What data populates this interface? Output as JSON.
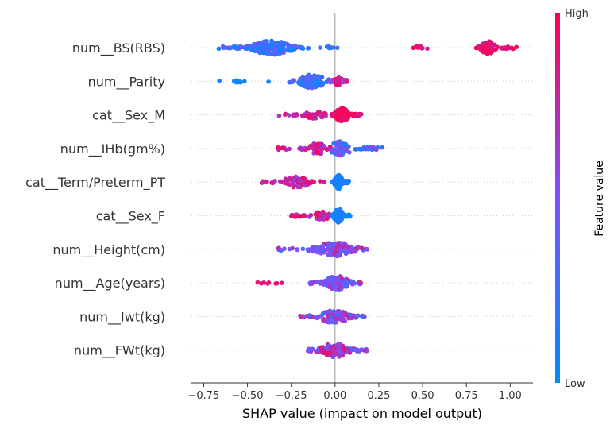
{
  "chart_data": {
    "type": "scatter",
    "subtype": "shap-beeswarm",
    "title": "",
    "xlabel": "SHAP value (impact on model output)",
    "xlim": [
      -0.82,
      1.13
    ],
    "xticks": [
      "−0.75",
      "−0.50",
      "−0.25",
      "0.00",
      "0.25",
      "0.50",
      "0.75",
      "1.00"
    ],
    "xtick_values": [
      -0.75,
      -0.5,
      -0.25,
      0,
      0.25,
      0.5,
      0.75,
      1.0
    ],
    "colorbar": {
      "label": "Feature value",
      "high": "High",
      "low": "Low",
      "low_color": "#008bfb",
      "high_color": "#ff0052"
    },
    "zero_line_color": "#999999",
    "features": [
      {
        "name": "num__BS(RBS)",
        "clusters": [
          {
            "min": -0.67,
            "max": -0.15,
            "center": -0.36,
            "count": 180,
            "fmin": 0.05,
            "fmax": 0.45
          },
          {
            "min": -0.1,
            "max": 0.05,
            "center": -0.04,
            "count": 10,
            "fmin": 0.1,
            "fmax": 0.4
          },
          {
            "min": 0.42,
            "max": 0.55,
            "center": 0.48,
            "count": 12,
            "fmin": 0.75,
            "fmax": 0.95
          },
          {
            "min": 0.8,
            "max": 1.04,
            "center": 0.88,
            "count": 80,
            "fmin": 0.82,
            "fmax": 1.0
          }
        ]
      },
      {
        "name": "num__Parity",
        "clusters": [
          {
            "min": -0.73,
            "max": -0.29,
            "center": -0.55,
            "count": 12,
            "fmin": 0.0,
            "fmax": 0.15
          },
          {
            "min": -0.27,
            "max": 0.07,
            "center": -0.13,
            "count": 110,
            "fmin": 0.05,
            "fmax": 0.45
          },
          {
            "min": -0.03,
            "max": 0.07,
            "center": 0.02,
            "count": 60,
            "fmin": 0.45,
            "fmax": 0.95
          }
        ]
      },
      {
        "name": "cat__Sex_M",
        "clusters": [
          {
            "min": -0.32,
            "max": -0.02,
            "center": -0.12,
            "count": 45,
            "fmin": 0.6,
            "fmax": 0.95
          },
          {
            "min": -0.02,
            "max": 0.15,
            "center": 0.04,
            "count": 140,
            "fmin": 0.85,
            "fmax": 1.0
          }
        ]
      },
      {
        "name": "num__IHb(gm%)",
        "clusters": [
          {
            "min": -0.34,
            "max": -0.02,
            "center": -0.1,
            "count": 70,
            "fmin": 0.55,
            "fmax": 1.0
          },
          {
            "min": -0.02,
            "max": 0.27,
            "center": 0.03,
            "count": 100,
            "fmin": 0.1,
            "fmax": 0.6
          }
        ]
      },
      {
        "name": "cat__Term/Preterm_PT",
        "clusters": [
          {
            "min": -0.42,
            "max": -0.06,
            "center": -0.22,
            "count": 70,
            "fmin": 0.6,
            "fmax": 1.0
          },
          {
            "min": -0.02,
            "max": 0.08,
            "center": 0.02,
            "count": 110,
            "fmin": 0.0,
            "fmax": 0.2
          }
        ]
      },
      {
        "name": "cat__Sex_F",
        "clusters": [
          {
            "min": -0.26,
            "max": -0.01,
            "center": -0.08,
            "count": 55,
            "fmin": 0.6,
            "fmax": 1.0
          },
          {
            "min": -0.02,
            "max": 0.09,
            "center": 0.02,
            "count": 120,
            "fmin": 0.0,
            "fmax": 0.2
          }
        ]
      },
      {
        "name": "num__Height(cm)",
        "clusters": [
          {
            "min": -0.33,
            "max": 0.2,
            "center": 0.0,
            "count": 150,
            "fmin": 0.3,
            "fmax": 0.85
          }
        ]
      },
      {
        "name": "num__Age(years)",
        "clusters": [
          {
            "min": -0.46,
            "max": -0.25,
            "center": -0.4,
            "count": 8,
            "fmin": 0.85,
            "fmax": 1.0
          },
          {
            "min": -0.15,
            "max": 0.15,
            "center": 0.01,
            "count": 130,
            "fmin": 0.2,
            "fmax": 0.8
          }
        ]
      },
      {
        "name": "num__Iwt(kg)",
        "clusters": [
          {
            "min": -0.2,
            "max": 0.17,
            "center": 0.0,
            "count": 110,
            "fmin": 0.2,
            "fmax": 0.85
          }
        ]
      },
      {
        "name": "num__FWt(kg)",
        "clusters": [
          {
            "min": -0.16,
            "max": 0.2,
            "center": 0.0,
            "count": 110,
            "fmin": 0.3,
            "fmax": 0.9
          }
        ]
      }
    ]
  }
}
